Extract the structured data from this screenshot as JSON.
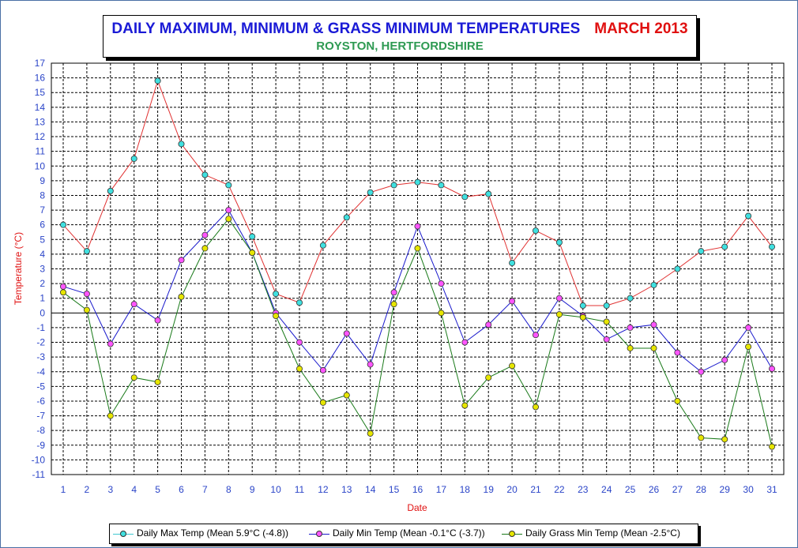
{
  "title": {
    "main": "DAILY MAXIMUM, MINIMUM & GRASS MINIMUM TEMPERATURES",
    "month": "MARCH 2013",
    "location": "ROYSTON, HERTFORDSHIRE"
  },
  "colors": {
    "max": "#e03030",
    "max_marker": "#40e0e0",
    "min": "#1a1acc",
    "min_marker": "#ff55ff",
    "grass": "#1a7a1a",
    "grass_marker": "#e6e600",
    "title_blue": "#1a1ad6",
    "title_red": "#e01010",
    "title_green": "#2e9a52",
    "tick_blue": "#2b45c8",
    "axis_red": "#e01010"
  },
  "legend": {
    "max": "Daily Max Temp (Mean 5.9°C (-4.8))",
    "min": "Daily Min Temp (Mean -0.1°C (-3.7))",
    "grass": "Daily Grass Min Temp (Mean -2.5°C)"
  },
  "chart_data": {
    "type": "line",
    "title": "DAILY MAXIMUM, MINIMUM & GRASS MINIMUM TEMPERATURES",
    "subtitle": "ROYSTON, HERTFORDSHIRE",
    "xlabel": "Date",
    "ylabel": "Temperature (°C)",
    "ylim": [
      -11,
      17
    ],
    "yticks": [
      17,
      16,
      15,
      14,
      13,
      12,
      11,
      10,
      9,
      8,
      7,
      6,
      5,
      4,
      3,
      2,
      1,
      0,
      -1,
      -2,
      -3,
      -4,
      -5,
      -6,
      -7,
      -8,
      -9,
      -10,
      -11
    ],
    "x": [
      1,
      2,
      3,
      4,
      5,
      6,
      7,
      8,
      9,
      10,
      11,
      12,
      13,
      14,
      15,
      16,
      17,
      18,
      19,
      20,
      21,
      22,
      23,
      24,
      25,
      26,
      27,
      28,
      29,
      30,
      31
    ],
    "grid": true,
    "legend_position": "bottom",
    "series": [
      {
        "name": "Daily Max Temp (Mean 5.9°C (-4.8))",
        "values": [
          6.0,
          4.2,
          8.3,
          10.5,
          15.8,
          11.5,
          9.4,
          8.7,
          5.2,
          1.3,
          0.7,
          4.6,
          6.5,
          8.2,
          8.7,
          8.9,
          8.7,
          7.9,
          8.1,
          3.4,
          5.6,
          4.8,
          0.5,
          0.5,
          1.0,
          1.9,
          3.0,
          4.2,
          4.5,
          6.6,
          4.5
        ]
      },
      {
        "name": "Daily Min Temp (Mean -0.1°C (-3.7))",
        "values": [
          1.8,
          1.3,
          -2.1,
          0.6,
          -0.5,
          3.6,
          5.3,
          7.0,
          4.1,
          0.0,
          -2.0,
          -3.9,
          -1.4,
          -3.5,
          1.4,
          5.9,
          2.0,
          -2.0,
          -0.8,
          0.8,
          -1.5,
          1.0,
          -0.2,
          -1.8,
          -1.0,
          -0.8,
          -2.7,
          -4.0,
          -3.2,
          -1.0,
          -3.8
        ]
      },
      {
        "name": "Daily Grass Min Temp (Mean -2.5°C)",
        "values": [
          1.4,
          0.2,
          -7.0,
          -4.4,
          -4.7,
          1.1,
          4.4,
          6.4,
          4.1,
          -0.2,
          -3.8,
          -6.1,
          -5.6,
          -8.2,
          0.6,
          4.4,
          0.0,
          -6.3,
          -4.4,
          -3.6,
          -6.4,
          -0.1,
          -0.3,
          -0.6,
          -2.4,
          -2.4,
          -6.0,
          -8.5,
          -8.6,
          -2.3,
          -9.1
        ]
      }
    ]
  }
}
